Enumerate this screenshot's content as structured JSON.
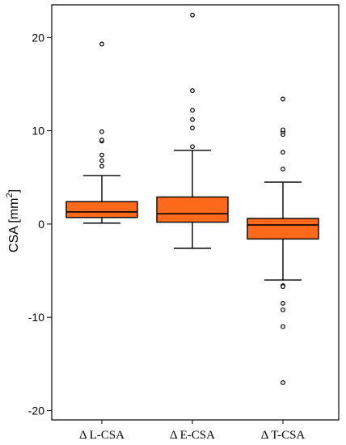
{
  "chart_data": {
    "type": "box",
    "ylabel": "CSA [mm",
    "ylabel_sup": "2",
    "ylabel_close": "]",
    "ylim": [
      -21,
      23.5
    ],
    "yticks": [
      -20,
      -10,
      0,
      10,
      20
    ],
    "grid": false,
    "colors": {
      "box_fill": "#FF6A1A",
      "stroke": "#000000"
    },
    "categories": [
      "Δ L-CSA",
      "Δ E-CSA",
      "Δ T-CSA"
    ],
    "boxes": [
      {
        "name": "Δ L-CSA",
        "whisker_low": 0.1,
        "q1": 0.7,
        "median": 1.3,
        "q3": 2.4,
        "whisker_high": 5.2,
        "outliers": [
          6.2,
          6.8,
          7.4,
          8.9,
          9.0,
          9.9,
          19.3
        ]
      },
      {
        "name": "Δ E-CSA",
        "whisker_low": -2.6,
        "q1": 0.2,
        "median": 1.1,
        "q3": 2.9,
        "whisker_high": 7.9,
        "outliers": [
          8.3,
          10.3,
          11.2,
          12.2,
          14.3,
          22.4
        ]
      },
      {
        "name": "Δ T-CSA",
        "whisker_low": -6.0,
        "q1": -1.6,
        "median": -0.1,
        "q3": 0.6,
        "whisker_high": 4.5,
        "outliers": [
          -17.0,
          -11.0,
          -9.2,
          -8.5,
          -6.6,
          -6.7,
          5.9,
          7.7,
          9.6,
          9.9,
          10.1,
          13.4
        ]
      }
    ]
  }
}
